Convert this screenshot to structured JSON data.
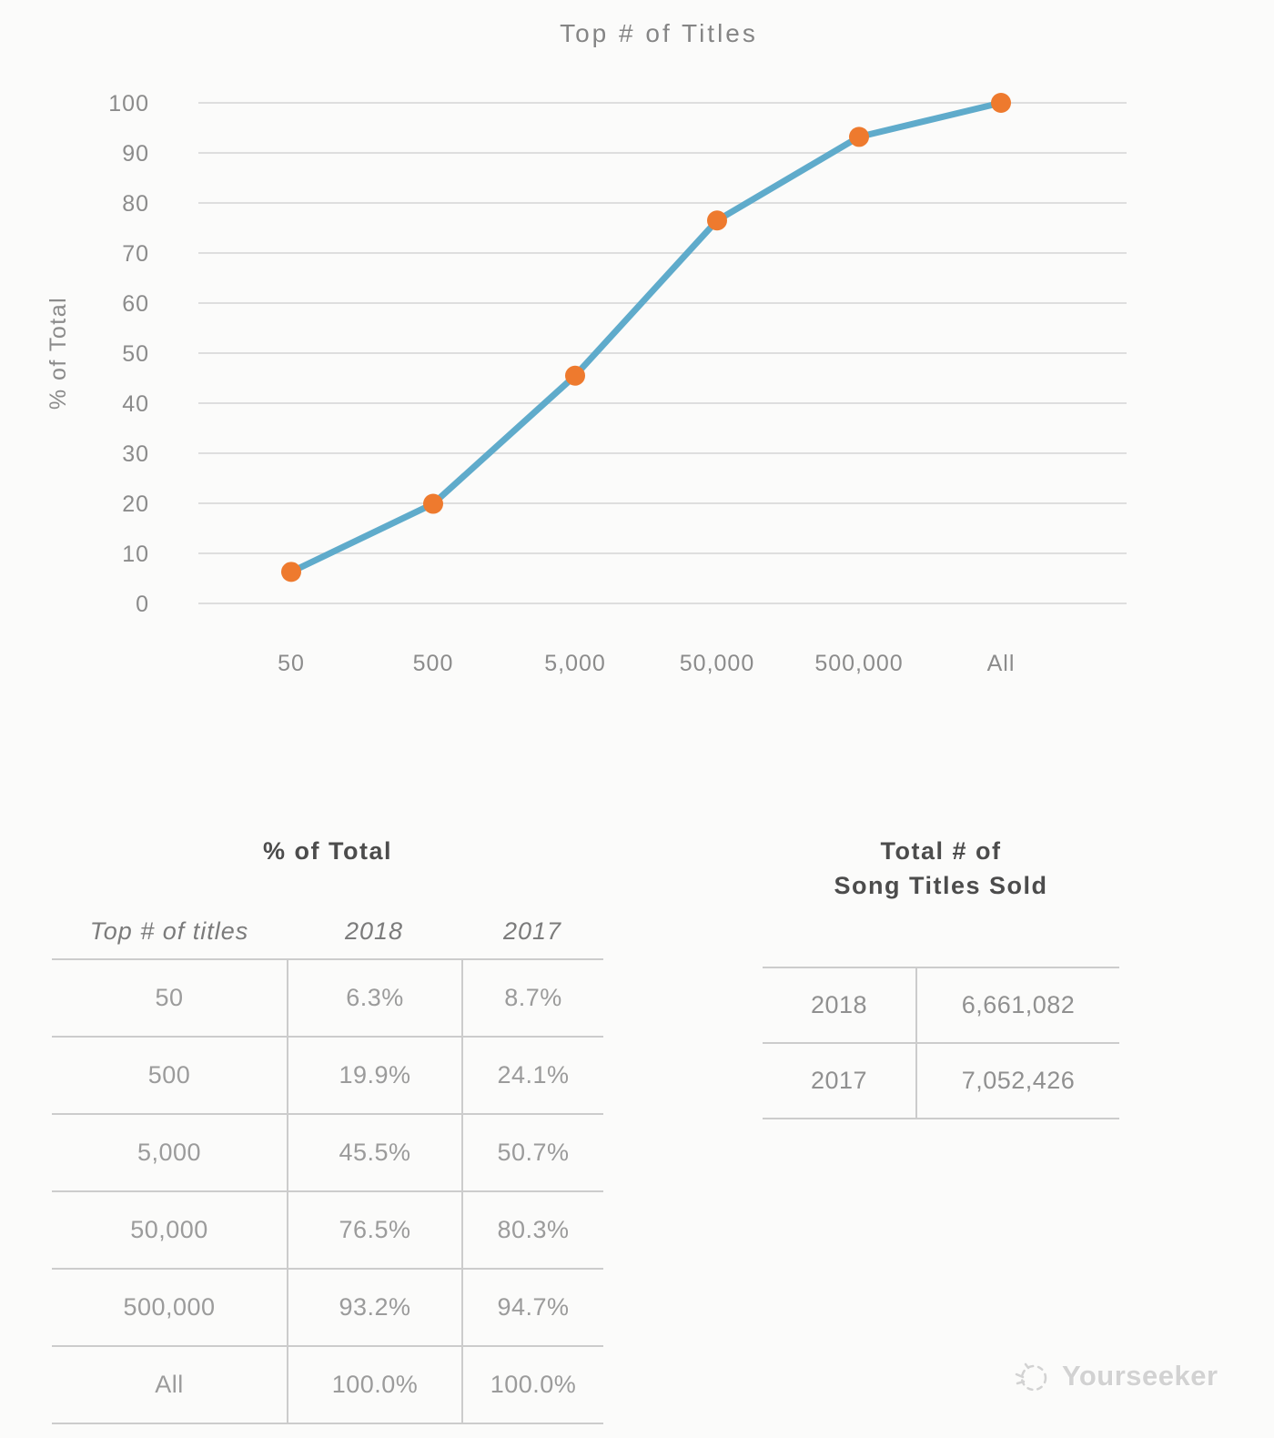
{
  "theme": {
    "background": "#fbfbfa",
    "grid_color": "#dadada",
    "tick_color": "#8b8b8b",
    "border_color": "#cccccc",
    "heading_color": "#4c4c4c",
    "cell_color": "#9b9b9b",
    "watermark_color": "#d2d2d2"
  },
  "chart_data": {
    "type": "line",
    "title": "Top # of Titles",
    "xlabel": "",
    "ylabel": "% of Total",
    "categories": [
      "50",
      "500",
      "5,000",
      "50,000",
      "500,000",
      "All"
    ],
    "series": [
      {
        "name": "2018",
        "values": [
          6.3,
          19.9,
          45.5,
          76.5,
          93.2,
          100.0
        ]
      }
    ],
    "ylim": [
      0,
      100
    ],
    "yticks": [
      0,
      10,
      20,
      30,
      40,
      50,
      60,
      70,
      80,
      90,
      100
    ],
    "grid": true,
    "legend": "none",
    "line_color": "#5fabcb",
    "marker_color": "#ee7a2e"
  },
  "left_table": {
    "title": "% of Total",
    "columns": [
      "Top # of titles",
      "2018",
      "2017"
    ],
    "rows": [
      [
        "50",
        "6.3%",
        "8.7%"
      ],
      [
        "500",
        "19.9%",
        "24.1%"
      ],
      [
        "5,000",
        "45.5%",
        "50.7%"
      ],
      [
        "50,000",
        "76.5%",
        "80.3%"
      ],
      [
        "500,000",
        "93.2%",
        "94.7%"
      ],
      [
        "All",
        "100.0%",
        "100.0%"
      ]
    ]
  },
  "right_table": {
    "title_line1": "Total # of",
    "title_line2": "Song Titles Sold",
    "rows": [
      [
        "2018",
        "6,661,082"
      ],
      [
        "2017",
        "7,052,426"
      ]
    ]
  },
  "watermark": {
    "label": "Yourseeker"
  }
}
